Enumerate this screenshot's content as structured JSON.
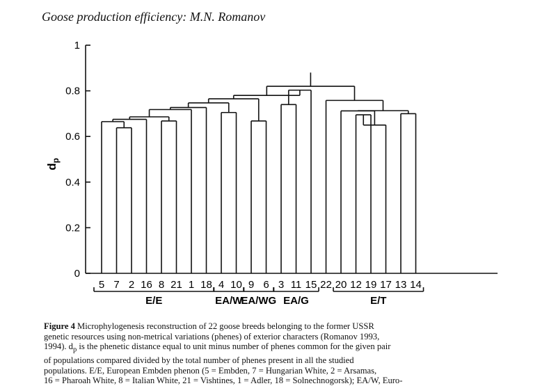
{
  "header": {
    "running_title": "Goose production efficiency: M.N. Romanov"
  },
  "chart_data": {
    "type": "dendrogram",
    "ylabel": "d",
    "ylabel_sub": "p",
    "ylim": [
      0,
      1
    ],
    "yticks": [
      {
        "value": 0,
        "label": "0"
      },
      {
        "value": 0.2,
        "label": "0.2"
      },
      {
        "value": 0.4,
        "label": "0.4"
      },
      {
        "value": 0.6,
        "label": "0.6"
      },
      {
        "value": 0.8,
        "label": "0.8"
      },
      {
        "value": 1,
        "label": "1"
      }
    ],
    "leaves": [
      "5",
      "7",
      "2",
      "16",
      "8",
      "21",
      "1",
      "18",
      "4",
      "10",
      "9",
      "6",
      "3",
      "11",
      "15",
      "22",
      "20",
      "12",
      "19",
      "17",
      "13",
      "14"
    ],
    "merges": [
      {
        "a": "L1",
        "b": "L2",
        "h": 0.638
      },
      {
        "a": "L4",
        "b": "L5",
        "h": 0.668
      },
      {
        "a": "L0",
        "b": "M0",
        "h": 0.665
      },
      {
        "a": "M2",
        "b": "L3",
        "h": 0.675
      },
      {
        "a": "M3",
        "b": "M1",
        "h": 0.686
      },
      {
        "a": "M4",
        "b": "L6",
        "h": 0.718
      },
      {
        "a": "M5",
        "b": "L7",
        "h": 0.727
      },
      {
        "a": "L8",
        "b": "L9",
        "h": 0.705
      },
      {
        "a": "M6",
        "b": "M7",
        "h": 0.747
      },
      {
        "a": "L10",
        "b": "L11",
        "h": 0.668
      },
      {
        "a": "M8",
        "b": "M9",
        "h": 0.765
      },
      {
        "a": "L12",
        "b": "L13",
        "h": 0.74
      },
      {
        "a": "L17",
        "b": "L18",
        "h": 0.695
      },
      {
        "a": "M12",
        "b": "L19",
        "h": 0.65
      },
      {
        "a": "L16",
        "b": "M13",
        "h": 0.712
      },
      {
        "a": "L20",
        "b": "L21",
        "h": 0.7
      },
      {
        "a": "M14",
        "b": "M15",
        "h": 0.713
      },
      {
        "a": "L15",
        "b": "M16",
        "h": 0.758
      },
      {
        "a": "M11",
        "b": "L14",
        "h": 0.803
      },
      {
        "a": "M10",
        "b": "M18",
        "h": 0.78
      },
      {
        "a": "M19",
        "b": "M17",
        "h": 0.82
      }
    ],
    "root_top": 0.88,
    "groups": [
      {
        "label": "E/E",
        "from": 0,
        "to": 7
      },
      {
        "label": "EA/W",
        "from": 8,
        "to": 9
      },
      {
        "label": "EA/WG",
        "from": 10,
        "to": 11
      },
      {
        "label": "EA/G",
        "from": 12,
        "to": 14
      },
      {
        "label": "E/T",
        "from": 16,
        "to": 21
      }
    ]
  },
  "caption": {
    "lead": "Figure 4",
    "lines": [
      "Microphylogenesis reconstruction of 22 goose breeds belonging to the former USSR",
      "genetic resources using non-metrical variations (phenes) of exterior characters (Romanov 1993,",
      "1994). d",
      "p",
      " is the phenetic distance equal to unit minus number of phenes common for the given pair",
      "of populations compared divided by the total number of phenes present in all the studied",
      "populations. E/E, European Embden phenon (5 = Embden, 7 = Hungarian White, 2 = Arsamas,",
      "16 = Pharoah White, 8 = Italian White, 21 = Vishtines, 1 = Adler, 18 = Solnechnogorsk); EA/W, Euro-"
    ]
  }
}
